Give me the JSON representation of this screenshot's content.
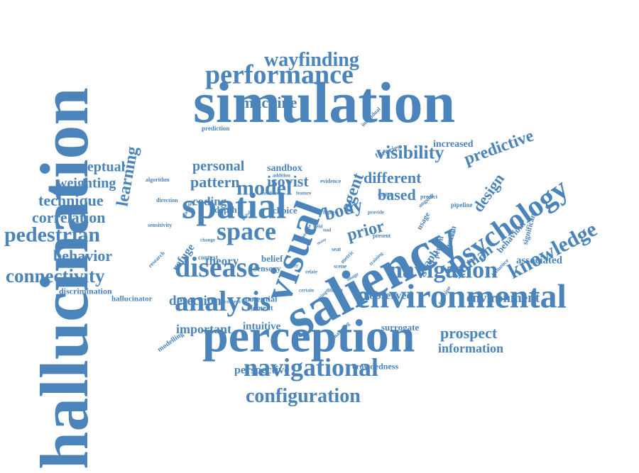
{
  "color": "#4a84ba",
  "words": [
    {
      "id": "hallucination",
      "text": "hallucination"
    },
    {
      "id": "simulation",
      "text": "simulation"
    },
    {
      "id": "perception",
      "text": "perception"
    },
    {
      "id": "saliency",
      "text": "saliency"
    },
    {
      "id": "visual",
      "text": "visual"
    },
    {
      "id": "environmental",
      "text": "environmental"
    },
    {
      "id": "spatial",
      "text": "spatial"
    },
    {
      "id": "performance",
      "text": "performance"
    },
    {
      "id": "navigational",
      "text": "navigational"
    },
    {
      "id": "analysis",
      "text": "analysis"
    },
    {
      "id": "disease",
      "text": "disease"
    },
    {
      "id": "navigation",
      "text": "navigation"
    },
    {
      "id": "space",
      "text": "space"
    },
    {
      "id": "psychology",
      "text": "psychology"
    },
    {
      "id": "wayfinding",
      "text": "wayfinding"
    },
    {
      "id": "configuration",
      "text": "configuration"
    },
    {
      "id": "knowledge",
      "text": "knowledge"
    },
    {
      "id": "pedestrian",
      "text": "pedestrian"
    },
    {
      "id": "connectivity",
      "text": "connectivity"
    },
    {
      "id": "model",
      "text": "model"
    },
    {
      "id": "machine",
      "text": "machine"
    },
    {
      "id": "visibility",
      "text": "visibility"
    },
    {
      "id": "predictive",
      "text": "predictive"
    },
    {
      "id": "design",
      "text": "design"
    },
    {
      "id": "learning",
      "text": "learning"
    },
    {
      "id": "technique",
      "text": "technique"
    },
    {
      "id": "correlation",
      "text": "correlation"
    },
    {
      "id": "behavior",
      "text": "behavior"
    },
    {
      "id": "conceptual",
      "text": "conceptual"
    },
    {
      "id": "weighting",
      "text": "weighting"
    },
    {
      "id": "pattern",
      "text": "pattern"
    },
    {
      "id": "personal",
      "text": "personal"
    },
    {
      "id": "different",
      "text": "different"
    },
    {
      "id": "body",
      "text": "body"
    },
    {
      "id": "prior",
      "text": "prior"
    },
    {
      "id": "based",
      "text": "based"
    },
    {
      "id": "agent",
      "text": "agent"
    },
    {
      "id": "isovist",
      "text": "isovist"
    },
    {
      "id": "environment",
      "text": "environment"
    },
    {
      "id": "detection",
      "text": "detection"
    },
    {
      "id": "important",
      "text": "important"
    },
    {
      "id": "prospect",
      "text": "prospect"
    },
    {
      "id": "information",
      "text": "information"
    },
    {
      "id": "perspective",
      "text": "perspective"
    },
    {
      "id": "human",
      "text": "human"
    },
    {
      "id": "observed",
      "text": "observed"
    },
    {
      "id": "associated",
      "text": "associated"
    },
    {
      "id": "coding",
      "text": "coding"
    },
    {
      "id": "theory",
      "text": "theory"
    },
    {
      "id": "refuge",
      "text": "refuge"
    },
    {
      "id": "discrimination",
      "text": "discrimination"
    },
    {
      "id": "hallucinator",
      "text": "hallucinator"
    },
    {
      "id": "intuitive",
      "text": "intuitive"
    },
    {
      "id": "surrogate",
      "text": "surrogate"
    },
    {
      "id": "crowdedness",
      "text": "crowdedness"
    },
    {
      "id": "graph",
      "text": "graph"
    },
    {
      "id": "increased",
      "text": "increased"
    },
    {
      "id": "sandbox",
      "text": "sandbox"
    },
    {
      "id": "choice",
      "text": "choice"
    },
    {
      "id": "depth",
      "text": "depth"
    },
    {
      "id": "belief",
      "text": "belief"
    },
    {
      "id": "sensory",
      "text": "sensory"
    },
    {
      "id": "potential",
      "text": "potential"
    },
    {
      "id": "element",
      "text": "element"
    },
    {
      "id": "theories",
      "text": "theories"
    },
    {
      "id": "behaviour",
      "text": "behaviour"
    },
    {
      "id": "significant",
      "text": "significant"
    },
    {
      "id": "system",
      "text": "system"
    },
    {
      "id": "person",
      "text": "person"
    },
    {
      "id": "usage",
      "text": "usage"
    },
    {
      "id": "pipeline",
      "text": "pipeline"
    },
    {
      "id": "prediction",
      "text": "prediction"
    },
    {
      "id": "algorithm",
      "text": "algorithm"
    },
    {
      "id": "direction",
      "text": "direction"
    },
    {
      "id": "sensitivity",
      "text": "sensitivity"
    },
    {
      "id": "research",
      "text": "research"
    },
    {
      "id": "context",
      "text": "context"
    },
    {
      "id": "modelling",
      "text": "modelling"
    },
    {
      "id": "concept",
      "text": "concept"
    },
    {
      "id": "certain",
      "text": "certain"
    },
    {
      "id": "difficult",
      "text": "difficult"
    },
    {
      "id": "examine",
      "text": "examine"
    },
    {
      "id": "influence",
      "text": "influence"
    },
    {
      "id": "predict",
      "text": "predict"
    },
    {
      "id": "angular",
      "text": "angular"
    },
    {
      "id": "provide",
      "text": "provide"
    },
    {
      "id": "studies",
      "text": "studies"
    },
    {
      "id": "evidence",
      "text": "evidence"
    },
    {
      "id": "addition",
      "text": "addition"
    },
    {
      "id": "condition",
      "text": "condition"
    },
    {
      "id": "feature",
      "text": "feature"
    },
    {
      "id": "individual",
      "text": "individual"
    },
    {
      "id": "analysing",
      "text": "analysing"
    },
    {
      "id": "scene",
      "text": "scene"
    },
    {
      "id": "metric",
      "text": "metric"
    },
    {
      "id": "present",
      "text": "present"
    },
    {
      "id": "higher",
      "text": "higher"
    },
    {
      "id": "field",
      "text": "field"
    },
    {
      "id": "tool",
      "text": "tool"
    },
    {
      "id": "study",
      "text": "study"
    },
    {
      "id": "relate",
      "text": "relate"
    },
    {
      "id": "setting",
      "text": "setting"
    },
    {
      "id": "image",
      "text": "image"
    },
    {
      "id": "training",
      "text": "training"
    },
    {
      "id": "seat",
      "text": "seat"
    },
    {
      "id": "finding",
      "text": "finding"
    },
    {
      "id": "cognition",
      "text": "cognition"
    },
    {
      "id": "global",
      "text": "global"
    },
    {
      "id": "change",
      "text": "change"
    },
    {
      "id": "analyse",
      "text": "analyse"
    },
    {
      "id": "many",
      "text": "many"
    }
  ]
}
